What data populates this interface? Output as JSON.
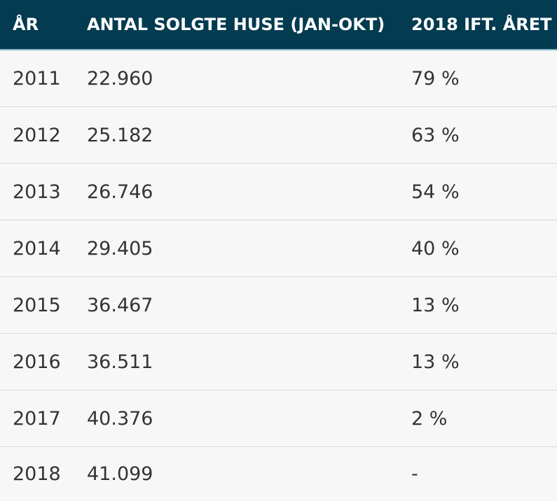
{
  "table": {
    "headers": [
      "ÅR",
      "ANTAL SOLGTE HUSE (JAN-OKT)",
      "2018 IFT. ÅRET"
    ],
    "rows": [
      [
        "2011",
        "22.960",
        "79 %"
      ],
      [
        "2012",
        "25.182",
        "63 %"
      ],
      [
        "2013",
        "26.746",
        "54 %"
      ],
      [
        "2014",
        "29.405",
        "40 %"
      ],
      [
        "2015",
        "36.467",
        "13 %"
      ],
      [
        "2016",
        "36.511",
        "13 %"
      ],
      [
        "2017",
        "40.376",
        "2 %"
      ],
      [
        "2018",
        "41.099",
        "-"
      ]
    ]
  },
  "colors": {
    "header_bg": "#033b50",
    "header_text": "#ffffff",
    "row_bg": "#f7f7f7",
    "row_text": "#333333",
    "divider": "#d9d9d9"
  }
}
